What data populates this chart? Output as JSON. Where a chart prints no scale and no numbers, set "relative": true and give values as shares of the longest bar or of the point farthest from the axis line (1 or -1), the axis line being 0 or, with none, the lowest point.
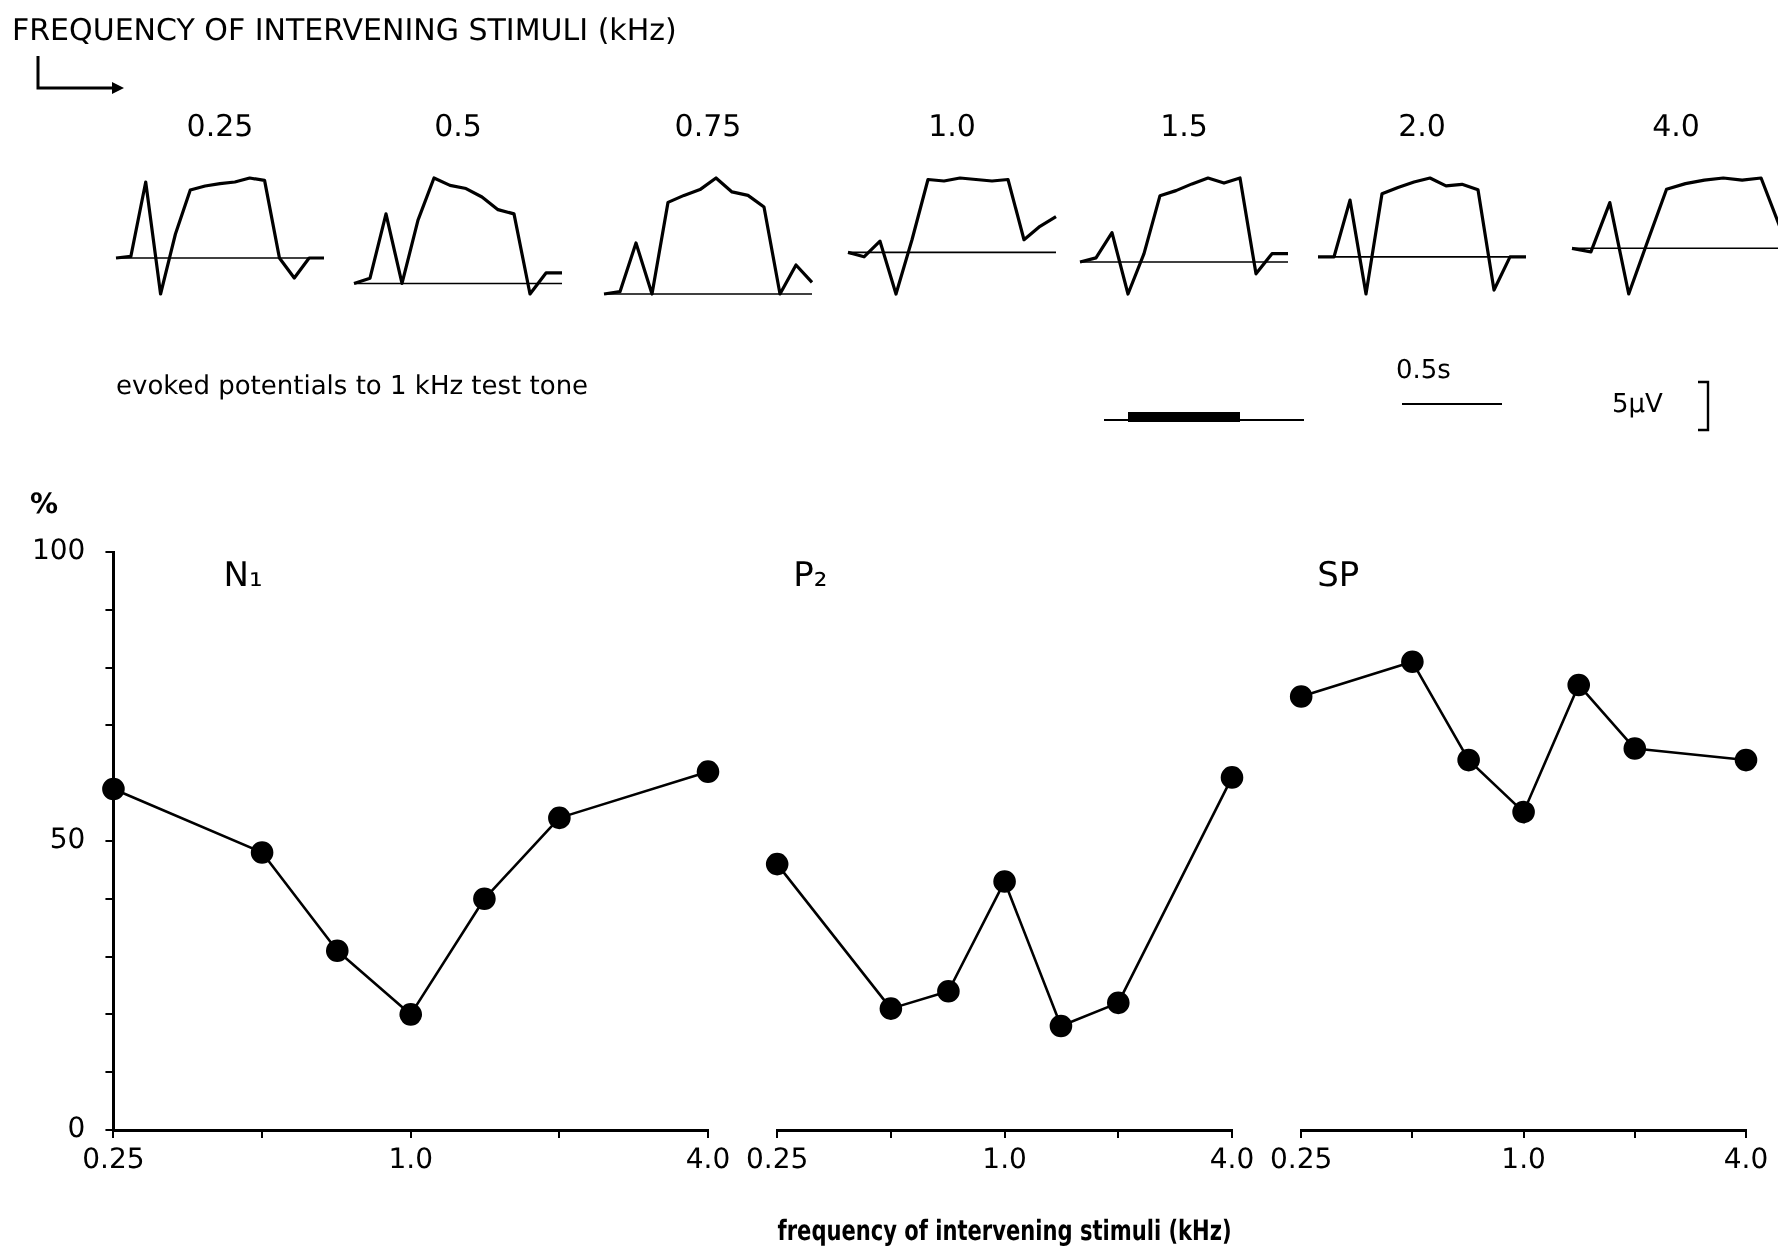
{
  "chart_data": [
    {
      "type": "other",
      "title": "FREQUENCY OF INTERVENING STIMULI (kHz)",
      "annotations": [
        "evoked potentials to 1 kHz test tone",
        "0.5s",
        "5µV"
      ]
    },
    {
      "type": "line",
      "title": "0.25",
      "relative": true,
      "categories": [
        null,
        null,
        null,
        null,
        null,
        null,
        null,
        null,
        null,
        null,
        null,
        null,
        null,
        null,
        null
      ],
      "series": [
        {
          "color": "#000000",
          "values": [
            0,
            0.02,
            0.95,
            -0.45,
            0.3,
            0.85,
            0.9,
            0.93,
            0.95,
            1,
            0.97,
            0,
            -0.25,
            0,
            0
          ]
        }
      ]
    },
    {
      "type": "line",
      "title": "0.5",
      "relative": true,
      "categories": [
        null,
        null,
        null,
        null,
        null,
        null,
        null,
        null,
        null,
        null,
        null,
        null,
        null,
        null
      ],
      "series": [
        {
          "color": "#000000",
          "values": [
            0,
            0.05,
            0.66,
            0,
            0.6,
            1,
            0.93,
            0.9,
            0.82,
            0.7,
            0.66,
            -0.1,
            0.1,
            0.1
          ]
        }
      ]
    },
    {
      "type": "line",
      "title": "0.75",
      "relative": true,
      "categories": [
        null,
        null,
        null,
        null,
        null,
        null,
        null,
        null,
        null,
        null,
        null,
        null,
        null,
        null
      ],
      "series": [
        {
          "color": "#000000",
          "values": [
            0,
            0.02,
            0.44,
            0,
            0.79,
            0.85,
            0.9,
            1,
            0.88,
            0.85,
            0.75,
            0,
            0.25,
            0.1
          ]
        }
      ]
    },
    {
      "type": "line",
      "title": "1.0",
      "relative": true,
      "categories": [
        null,
        null,
        null,
        null,
        null,
        null,
        null,
        null,
        null,
        null,
        null,
        null,
        null,
        null
      ],
      "series": [
        {
          "color": "#000000",
          "values": [
            0,
            -0.06,
            0.15,
            -0.56,
            0.17,
            0.98,
            0.96,
            1,
            0.98,
            0.96,
            0.98,
            0.17,
            0.35,
            0.48
          ]
        }
      ]
    },
    {
      "type": "line",
      "title": "1.5",
      "relative": true,
      "categories": [
        null,
        null,
        null,
        null,
        null,
        null,
        null,
        null,
        null,
        null,
        null,
        null,
        null,
        null
      ],
      "series": [
        {
          "color": "#000000",
          "values": [
            0,
            0.05,
            0.35,
            -0.38,
            0.1,
            0.79,
            0.85,
            0.93,
            1,
            0.94,
            1,
            -0.14,
            0.1,
            0.1
          ]
        }
      ]
    },
    {
      "type": "line",
      "title": "2.0",
      "relative": true,
      "categories": [
        null,
        null,
        null,
        null,
        null,
        null,
        null,
        null,
        null,
        null,
        null,
        null,
        null,
        null
      ],
      "series": [
        {
          "color": "#000000",
          "values": [
            0,
            0,
            0.72,
            -0.47,
            0.8,
            0.88,
            0.95,
            1,
            0.9,
            0.92,
            0.85,
            -0.42,
            0,
            0
          ]
        }
      ]
    },
    {
      "type": "line",
      "title": "4.0",
      "relative": true,
      "categories": [
        null,
        null,
        null,
        null,
        null,
        null,
        null,
        null,
        null,
        null,
        null,
        null
      ],
      "series": [
        {
          "color": "#000000",
          "values": [
            0,
            -0.05,
            0.65,
            -0.65,
            0.1,
            0.84,
            0.92,
            0.97,
            1,
            0.97,
            1,
            0.3
          ]
        }
      ]
    },
    {
      "type": "line",
      "title": "N₁",
      "ylabel": "%",
      "x": [
        0.25,
        0.5,
        0.71,
        1,
        1.41,
        2,
        4
      ],
      "series": [
        {
          "color": "#000000",
          "values": [
            59,
            48,
            31,
            20,
            40,
            54,
            62
          ]
        }
      ],
      "xlim": [
        0.25,
        4
      ],
      "xticks": [
        {
          "value": 0.25,
          "label": "0.25"
        },
        {
          "value": 0.5,
          "label": null
        },
        {
          "value": 1,
          "label": "1.0"
        },
        {
          "value": 2,
          "label": null
        },
        {
          "value": 4,
          "label": "4.0"
        }
      ],
      "ylim": [
        0,
        100
      ],
      "yticks": [
        0,
        {
          "value": 10,
          "label": null
        },
        {
          "value": 20,
          "label": null
        },
        {
          "value": 30,
          "label": null
        },
        {
          "value": 40,
          "label": null
        },
        50,
        {
          "value": 60,
          "label": null
        },
        {
          "value": 70,
          "label": null
        },
        {
          "value": 80,
          "label": null
        },
        {
          "value": 90,
          "label": null
        },
        100
      ],
      "log": "x",
      "marker": "circle",
      "line_style": "solid"
    },
    {
      "type": "line",
      "title": "P₂",
      "xlabel": "frequency of intervening stimuli (kHz)",
      "x": [
        0.25,
        0.5,
        0.71,
        1,
        1.41,
        2,
        4
      ],
      "series": [
        {
          "color": "#000000",
          "values": [
            46,
            21,
            24,
            43,
            18,
            22,
            61
          ]
        }
      ],
      "xlim": [
        0.25,
        4
      ],
      "xticks": [
        {
          "value": 0.25,
          "label": "0.25"
        },
        {
          "value": 0.5,
          "label": null
        },
        {
          "value": 1,
          "label": "1.0"
        },
        {
          "value": 2,
          "label": null
        },
        {
          "value": 4,
          "label": "4.0"
        }
      ],
      "ylim": [
        0,
        100
      ],
      "tick_labels": "x",
      "log": "x",
      "marker": "circle",
      "line_style": "solid"
    },
    {
      "type": "line",
      "title": "SP",
      "x": [
        0.25,
        0.5,
        0.71,
        1,
        1.41,
        2,
        4
      ],
      "series": [
        {
          "color": "#000000",
          "values": [
            75,
            81,
            64,
            55,
            77,
            66,
            64
          ]
        }
      ],
      "xlim": [
        0.25,
        4
      ],
      "xticks": [
        {
          "value": 0.25,
          "label": "0.25"
        },
        {
          "value": 0.5,
          "label": null
        },
        {
          "value": 1,
          "label": "1.0"
        },
        {
          "value": 2,
          "label": null
        },
        {
          "value": 4,
          "label": "4.0"
        }
      ],
      "ylim": [
        0,
        100
      ],
      "tick_labels": "x",
      "log": "x",
      "marker": "circle",
      "line_style": "solid"
    }
  ]
}
